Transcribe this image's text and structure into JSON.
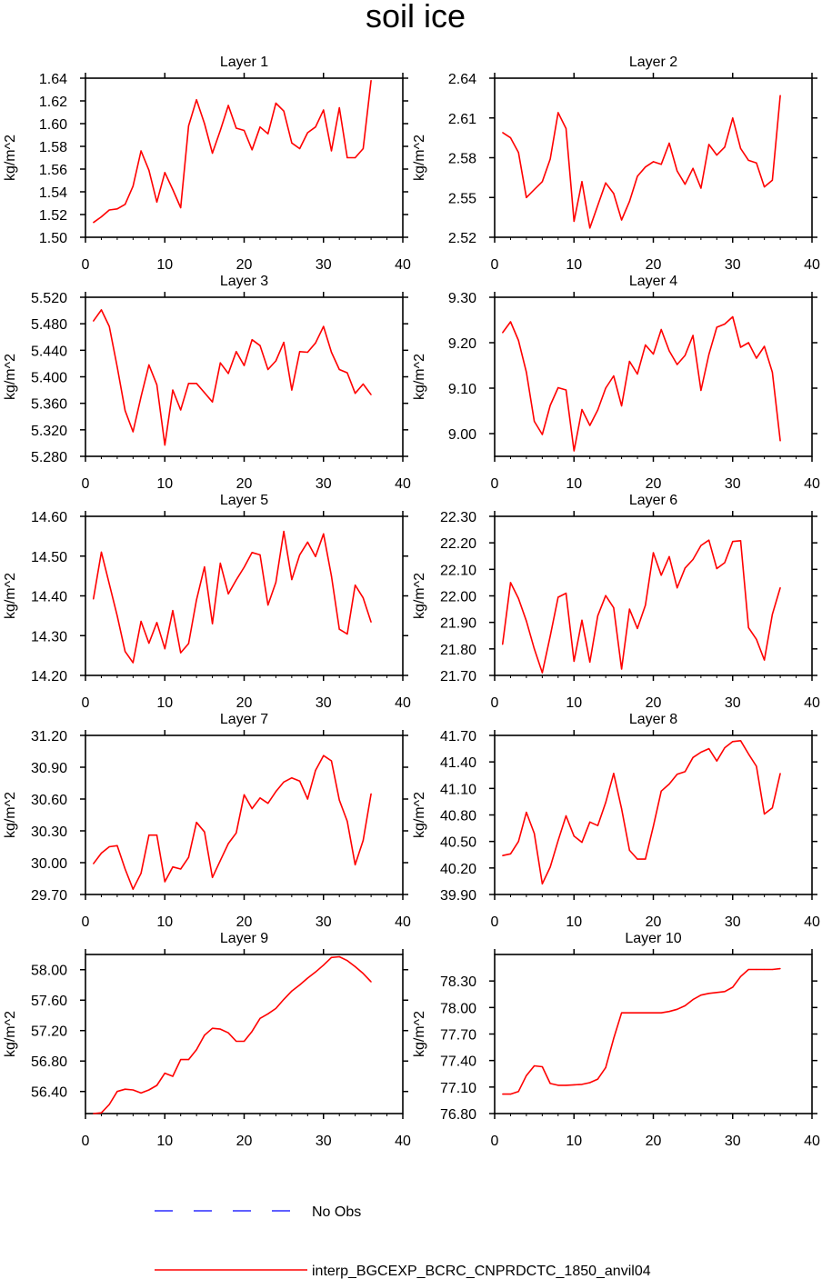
{
  "title": "soil ice",
  "legend": [
    {
      "label": "No Obs",
      "color": "#0000ff",
      "style": "dashed"
    },
    {
      "label": "interp_BGCEXP_BCRC_CNPRDCTC_1850_anvil04",
      "color": "#ff0000",
      "style": "solid"
    }
  ],
  "chart_data": [
    {
      "type": "line",
      "title": "Layer 1",
      "ylabel": "kg/m^2",
      "xlim": [
        0,
        40
      ],
      "xticks": [
        0,
        10,
        20,
        30,
        40
      ],
      "ylim": [
        1.5,
        1.64
      ],
      "yticks": [
        "1.50",
        "1.52",
        "1.54",
        "1.56",
        "1.58",
        "1.60",
        "1.62",
        "1.64"
      ],
      "values": [
        1.513,
        1.518,
        1.524,
        1.525,
        1.529,
        1.545,
        1.576,
        1.559,
        1.531,
        1.557,
        1.542,
        1.526,
        1.598,
        1.621,
        1.6,
        1.574,
        1.594,
        1.616,
        1.596,
        1.594,
        1.577,
        1.597,
        1.591,
        1.618,
        1.611,
        1.583,
        1.578,
        1.592,
        1.597,
        1.612,
        1.576,
        1.614,
        1.57,
        1.57,
        1.578,
        1.638
      ]
    },
    {
      "type": "line",
      "title": "Layer 2",
      "ylabel": "kg/m^2",
      "xlim": [
        0,
        40
      ],
      "xticks": [
        0,
        10,
        20,
        30,
        40
      ],
      "ylim": [
        2.52,
        2.64
      ],
      "yticks": [
        "2.52",
        "2.55",
        "2.58",
        "2.61",
        "2.64"
      ],
      "values": [
        2.599,
        2.595,
        2.584,
        2.55,
        2.556,
        2.562,
        2.579,
        2.614,
        2.602,
        2.532,
        2.562,
        2.527,
        2.544,
        2.561,
        2.553,
        2.533,
        2.547,
        2.566,
        2.573,
        2.577,
        2.575,
        2.591,
        2.57,
        2.56,
        2.572,
        2.557,
        2.59,
        2.582,
        2.588,
        2.61,
        2.587,
        2.578,
        2.576,
        2.558,
        2.563,
        2.627
      ]
    },
    {
      "type": "line",
      "title": "Layer 3",
      "ylabel": "kg/m^2",
      "xlim": [
        0,
        40
      ],
      "xticks": [
        0,
        10,
        20,
        30,
        40
      ],
      "ylim": [
        5.28,
        5.52
      ],
      "yticks": [
        "5.280",
        "5.320",
        "5.360",
        "5.400",
        "5.440",
        "5.480",
        "5.520"
      ],
      "values": [
        5.484,
        5.501,
        5.476,
        5.415,
        5.349,
        5.317,
        5.37,
        5.418,
        5.388,
        5.297,
        5.38,
        5.35,
        5.39,
        5.39,
        5.376,
        5.362,
        5.421,
        5.405,
        5.438,
        5.417,
        5.456,
        5.447,
        5.411,
        5.424,
        5.452,
        5.38,
        5.438,
        5.437,
        5.451,
        5.476,
        5.437,
        5.411,
        5.406,
        5.375,
        5.389,
        5.373
      ]
    },
    {
      "type": "line",
      "title": "Layer 4",
      "ylabel": "kg/m^2",
      "xlim": [
        0,
        40
      ],
      "xticks": [
        0,
        10,
        20,
        30,
        40
      ],
      "ylim": [
        8.95,
        9.3
      ],
      "yticks": [
        "9.00",
        "9.10",
        "9.20",
        "9.30"
      ],
      "values": [
        9.222,
        9.246,
        9.205,
        9.135,
        9.027,
        8.998,
        9.062,
        9.101,
        9.096,
        8.962,
        9.053,
        9.018,
        9.052,
        9.1,
        9.127,
        9.061,
        9.159,
        9.131,
        9.195,
        9.175,
        9.229,
        9.182,
        9.152,
        9.172,
        9.216,
        9.095,
        9.174,
        9.234,
        9.241,
        9.257,
        9.19,
        9.2,
        9.166,
        9.192,
        9.135,
        8.984
      ]
    },
    {
      "type": "line",
      "title": "Layer 5",
      "ylabel": "kg/m^2",
      "xlim": [
        0,
        40
      ],
      "xticks": [
        0,
        10,
        20,
        30,
        40
      ],
      "ylim": [
        14.2,
        14.6
      ],
      "yticks": [
        "14.20",
        "14.30",
        "14.40",
        "14.50",
        "14.60"
      ],
      "values": [
        14.392,
        14.51,
        14.43,
        14.35,
        14.26,
        14.232,
        14.336,
        14.281,
        14.333,
        14.267,
        14.363,
        14.257,
        14.28,
        14.39,
        14.473,
        14.33,
        14.482,
        14.405,
        14.44,
        14.472,
        14.509,
        14.503,
        14.377,
        14.434,
        14.562,
        14.441,
        14.503,
        14.535,
        14.499,
        14.556,
        14.45,
        14.316,
        14.304,
        14.427,
        14.395,
        14.334
      ]
    },
    {
      "type": "line",
      "title": "Layer 6",
      "ylabel": "kg/m^2",
      "xlim": [
        0,
        40
      ],
      "xticks": [
        0,
        10,
        20,
        30,
        40
      ],
      "ylim": [
        21.7,
        22.3
      ],
      "yticks": [
        "21.70",
        "21.80",
        "21.90",
        "22.00",
        "22.10",
        "22.20",
        "22.30"
      ],
      "values": [
        21.817,
        22.05,
        21.99,
        21.905,
        21.8,
        21.71,
        21.848,
        21.995,
        22.01,
        21.753,
        21.908,
        21.75,
        21.925,
        22.001,
        21.955,
        21.724,
        21.95,
        21.877,
        21.965,
        22.163,
        22.078,
        22.148,
        22.03,
        22.105,
        22.137,
        22.19,
        22.21,
        22.103,
        22.125,
        22.205,
        22.208,
        21.88,
        21.836,
        21.758,
        21.93,
        22.031
      ]
    },
    {
      "type": "line",
      "title": "Layer 7",
      "ylabel": "kg/m^2",
      "xlim": [
        0,
        40
      ],
      "xticks": [
        0,
        10,
        20,
        30,
        40
      ],
      "ylim": [
        29.7,
        31.2
      ],
      "yticks": [
        "29.70",
        "30.00",
        "30.30",
        "30.60",
        "30.90",
        "31.20"
      ],
      "values": [
        29.99,
        30.09,
        30.15,
        30.16,
        29.94,
        29.75,
        29.9,
        30.26,
        30.26,
        29.82,
        29.96,
        29.94,
        30.05,
        30.38,
        30.29,
        29.86,
        30.02,
        30.18,
        30.28,
        30.64,
        30.51,
        30.61,
        30.56,
        30.67,
        30.76,
        30.8,
        30.77,
        30.6,
        30.87,
        31.01,
        30.96,
        30.59,
        30.39,
        29.98,
        30.21,
        30.65
      ]
    },
    {
      "type": "line",
      "title": "Layer 8",
      "ylabel": "kg/m^2",
      "xlim": [
        0,
        40
      ],
      "xticks": [
        0,
        10,
        20,
        30,
        40
      ],
      "ylim": [
        39.9,
        41.7
      ],
      "yticks": [
        "39.90",
        "40.20",
        "40.50",
        "40.80",
        "41.10",
        "41.40",
        "41.70"
      ],
      "values": [
        40.34,
        40.36,
        40.5,
        40.83,
        40.59,
        40.02,
        40.21,
        40.51,
        40.79,
        40.56,
        40.49,
        40.72,
        40.68,
        40.94,
        41.27,
        40.87,
        40.4,
        40.3,
        40.3,
        40.67,
        41.07,
        41.15,
        41.26,
        41.29,
        41.45,
        41.51,
        41.55,
        41.41,
        41.56,
        41.63,
        41.64,
        41.49,
        41.35,
        40.81,
        40.88,
        41.27
      ]
    },
    {
      "type": "line",
      "title": "Layer 9",
      "ylabel": "kg/m^2",
      "xlim": [
        0,
        40
      ],
      "xticks": [
        0,
        10,
        20,
        30,
        40
      ],
      "ylim": [
        56.11,
        58.2
      ],
      "yticks": [
        "56.40",
        "56.80",
        "57.20",
        "57.60",
        "58.00"
      ],
      "values": [
        56.11,
        56.12,
        56.23,
        56.4,
        56.43,
        56.42,
        56.38,
        56.42,
        56.48,
        56.64,
        56.6,
        56.82,
        56.82,
        56.95,
        57.14,
        57.23,
        57.22,
        57.17,
        57.06,
        57.06,
        57.19,
        57.36,
        57.42,
        57.49,
        57.61,
        57.72,
        57.8,
        57.89,
        57.97,
        58.06,
        58.16,
        58.17,
        58.12,
        58.04,
        57.95,
        57.84
      ]
    },
    {
      "type": "line",
      "title": "Layer 10",
      "ylabel": "kg/m^2",
      "xlim": [
        0,
        40
      ],
      "xticks": [
        0,
        10,
        20,
        30,
        40
      ],
      "ylim": [
        76.8,
        78.6
      ],
      "yticks": [
        "76.80",
        "77.10",
        "77.40",
        "77.70",
        "78.00",
        "78.30"
      ],
      "values": [
        77.02,
        77.02,
        77.05,
        77.23,
        77.34,
        77.33,
        77.14,
        77.12,
        77.12,
        77.125,
        77.13,
        77.15,
        77.19,
        77.32,
        77.65,
        77.94,
        77.94,
        77.94,
        77.94,
        77.94,
        77.94,
        77.955,
        77.98,
        78.02,
        78.09,
        78.14,
        78.16,
        78.17,
        78.18,
        78.23,
        78.35,
        78.43,
        78.43,
        78.43,
        78.43,
        78.44
      ]
    }
  ]
}
